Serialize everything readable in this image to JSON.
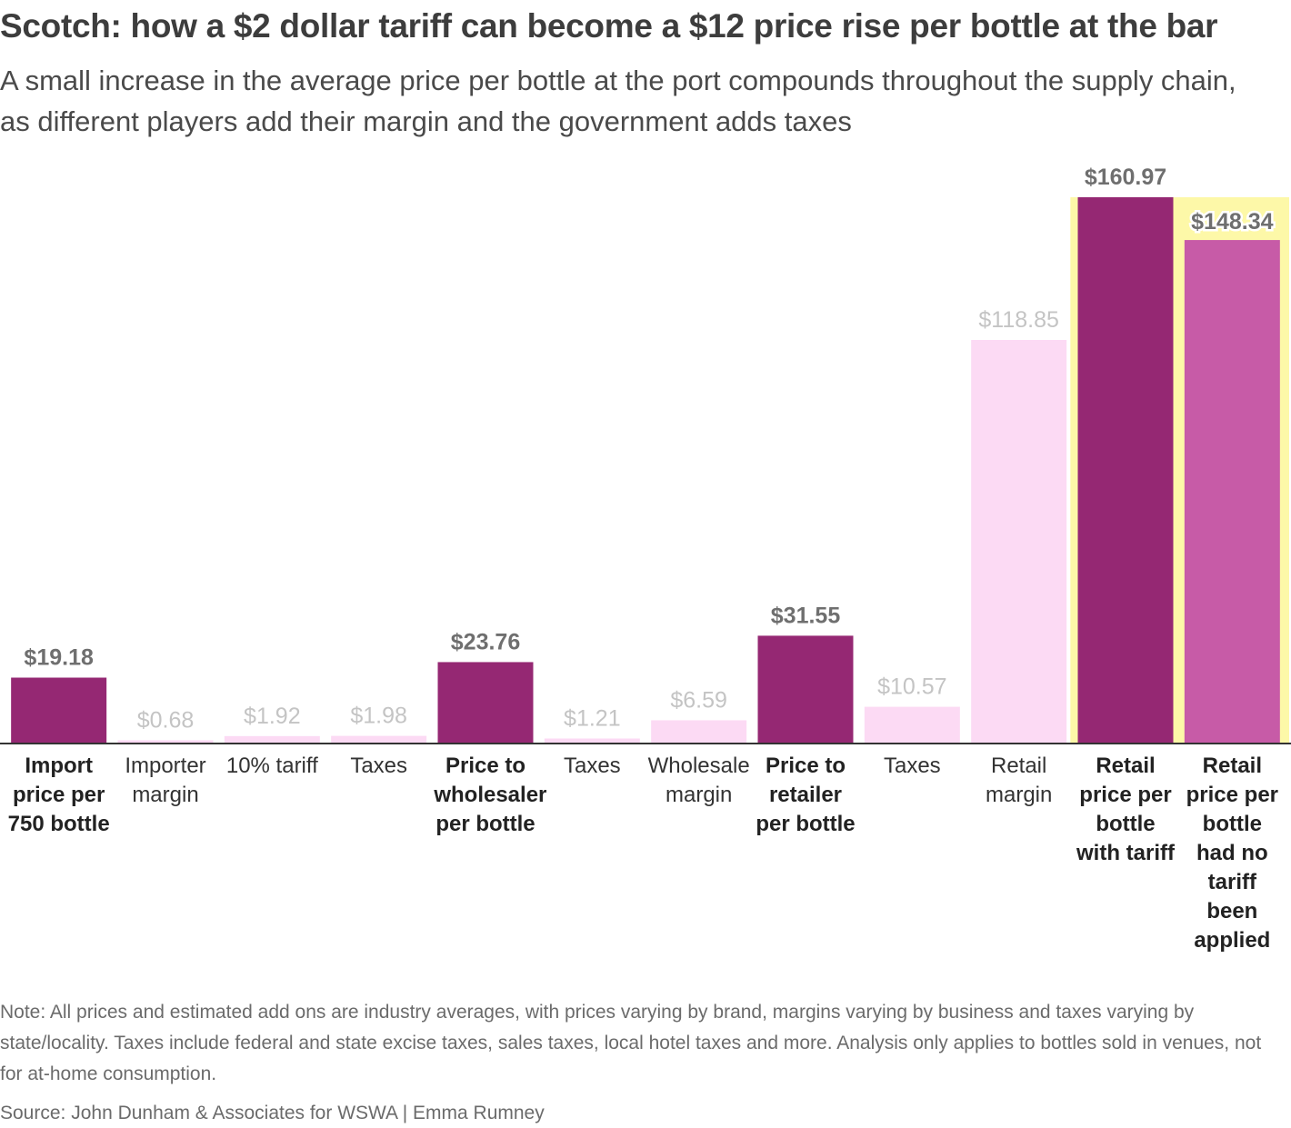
{
  "title": "Scotch: how a $2 dollar tariff can become a $12 price rise per bottle at the bar",
  "subtitle": "A small increase in the average price per bottle at the port compounds throughout the supply chain, as different players add their margin and the government adds taxes",
  "note": "Note: All prices and estimated add ons are industry averages, with prices varying by brand, margins varying by business and taxes varying by state/locality. Taxes include federal and state excise taxes, sales taxes, local hotel taxes and more. Analysis only applies to bottles sold in venues, not for at-home consumption.",
  "source": "Source: John Dunham & Associates for WSWA | Emma Rumney",
  "colors": {
    "total": "#952873",
    "component": "#fcdaf4",
    "no_tariff": "#c75ba7",
    "highlight": "#fdf8a8",
    "total_label": "#6f6f6f",
    "component_label": "#c4c4c4",
    "axis": "#333333"
  },
  "chart_data": {
    "type": "bar",
    "title": "Scotch: how a $2 dollar tariff can become a $12 price rise per bottle at the bar",
    "xlabel": "",
    "ylabel": "",
    "ylim": [
      0,
      160.97
    ],
    "grid": false,
    "bars": [
      {
        "category": "Import price per 750 bottle",
        "value": 19.18,
        "label": "$19.18",
        "kind": "total"
      },
      {
        "category": "Importer margin",
        "value": 0.68,
        "label": "$0.68",
        "kind": "component"
      },
      {
        "category": "10% tariff",
        "value": 1.92,
        "label": "$1.92",
        "kind": "component"
      },
      {
        "category": "Taxes",
        "value": 1.98,
        "label": "$1.98",
        "kind": "component"
      },
      {
        "category": "Price to wholesaler per bottle",
        "value": 23.76,
        "label": "$23.76",
        "kind": "total"
      },
      {
        "category": "Taxes",
        "value": 1.21,
        "label": "$1.21",
        "kind": "component"
      },
      {
        "category": "Wholesale margin",
        "value": 6.59,
        "label": "$6.59",
        "kind": "component"
      },
      {
        "category": "Price to retailer per bottle",
        "value": 31.55,
        "label": "$31.55",
        "kind": "total"
      },
      {
        "category": "Taxes",
        "value": 10.57,
        "label": "$10.57",
        "kind": "component"
      },
      {
        "category": "Retail margin",
        "value": 118.85,
        "label": "$118.85",
        "kind": "component"
      },
      {
        "category": "Retail price per bottle with tariff",
        "value": 160.97,
        "label": "$160.97",
        "kind": "total",
        "highlight": true
      },
      {
        "category": "Retail price per bottle had no tariff been applied",
        "value": 148.34,
        "label": "$148.34",
        "kind": "no_tariff",
        "highlight": true
      }
    ]
  }
}
